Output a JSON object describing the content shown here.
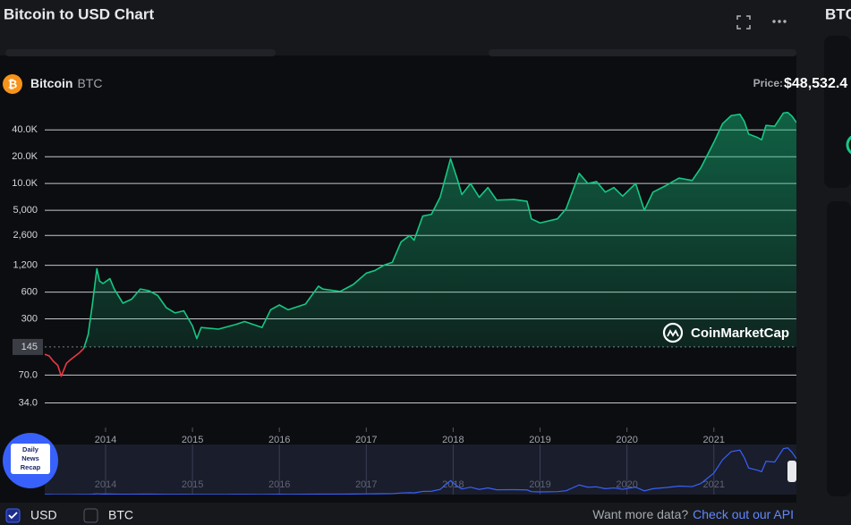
{
  "header": {
    "title": "Bitcoin to USD Chart",
    "coin_name": "Bitcoin",
    "coin_symbol": "BTC",
    "price_label": "Price:",
    "price": "$48,532.4",
    "side_label": "BTC"
  },
  "watermark": "CoinMarketCap",
  "badge": [
    "Daily",
    "News",
    "Recap"
  ],
  "footer": {
    "currencies": [
      "USD",
      "BTC"
    ],
    "more_data": "Want more data?",
    "api_link": "Check out our API"
  },
  "chart_data": {
    "type": "line",
    "log_scale": true,
    "grid": true,
    "baseline": 145,
    "color": "#16c784",
    "below_color": "#ea3943",
    "navigator_color": "#3861fb",
    "x": [
      2013.3,
      2013.35,
      2013.4,
      2013.45,
      2013.49,
      2013.55,
      2013.6,
      2013.7,
      2013.75,
      2013.8,
      2013.85,
      2013.9,
      2013.93,
      2013.97,
      2014.05,
      2014.1,
      2014.2,
      2014.3,
      2014.4,
      2014.5,
      2014.6,
      2014.7,
      2014.8,
      2014.9,
      2015.0,
      2015.05,
      2015.1,
      2015.3,
      2015.5,
      2015.6,
      2015.8,
      2015.9,
      2016.0,
      2016.1,
      2016.3,
      2016.45,
      2016.5,
      2016.7,
      2016.85,
      2017.0,
      2017.1,
      2017.2,
      2017.3,
      2017.4,
      2017.5,
      2017.55,
      2017.65,
      2017.75,
      2017.85,
      2017.97,
      2018.05,
      2018.1,
      2018.2,
      2018.3,
      2018.4,
      2018.5,
      2018.7,
      2018.85,
      2018.9,
      2019.0,
      2019.2,
      2019.3,
      2019.45,
      2019.55,
      2019.65,
      2019.75,
      2019.85,
      2019.95,
      2020.1,
      2020.2,
      2020.3,
      2020.45,
      2020.6,
      2020.75,
      2020.85,
      2021.0,
      2021.1,
      2021.2,
      2021.3,
      2021.35,
      2021.4,
      2021.5,
      2021.55,
      2021.6,
      2021.7,
      2021.8,
      2021.85,
      2021.9,
      2021.95
    ],
    "values": [
      120,
      115,
      100,
      90,
      68,
      95,
      105,
      125,
      140,
      200,
      450,
      1100,
      800,
      750,
      850,
      650,
      450,
      500,
      650,
      620,
      550,
      400,
      350,
      370,
      250,
      180,
      240,
      230,
      260,
      280,
      240,
      380,
      430,
      380,
      440,
      700,
      650,
      610,
      730,
      980,
      1050,
      1200,
      1300,
      2200,
      2600,
      2300,
      4300,
      4500,
      7000,
      19000,
      11000,
      7500,
      10000,
      7000,
      9000,
      6500,
      6600,
      6300,
      4000,
      3600,
      4000,
      5200,
      13000,
      10000,
      10500,
      8000,
      9000,
      7200,
      10000,
      5000,
      8000,
      9500,
      11500,
      10800,
      15000,
      29000,
      47000,
      58000,
      60000,
      50000,
      36000,
      33000,
      31000,
      45000,
      44000,
      62000,
      63000,
      57000,
      48532
    ],
    "xlim": [
      2013.3,
      2021.95
    ],
    "xticks": [
      2014,
      2015,
      2016,
      2017,
      2018,
      2019,
      2020,
      2021
    ],
    "ylim": [
      18,
      64000
    ],
    "yticks": [
      {
        "value": 34,
        "label": "34.0"
      },
      {
        "value": 70,
        "label": "70.0"
      },
      145,
      300,
      600,
      {
        "value": 1200,
        "label": "1,200"
      },
      {
        "value": 2600,
        "label": "2,600"
      },
      {
        "value": 5000,
        "label": "5,000"
      },
      {
        "value": 10000,
        "label": "10.0K"
      },
      {
        "value": 20000,
        "label": "20.0K"
      },
      {
        "value": 40000,
        "label": "40.0K"
      }
    ]
  }
}
